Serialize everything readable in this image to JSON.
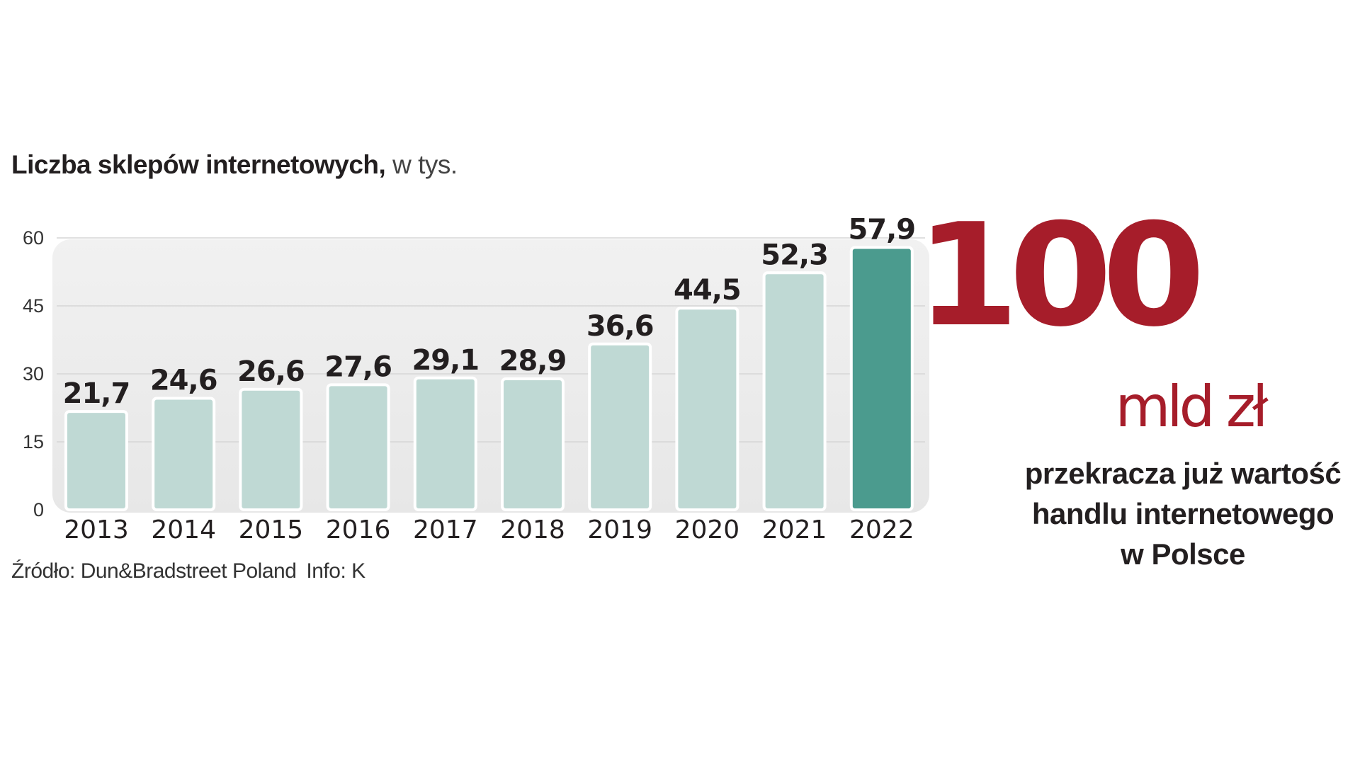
{
  "chart_data": {
    "type": "bar",
    "title_bold": "Liczba sklepów internetowych,",
    "title_light": " w tys.",
    "categories": [
      "2013",
      "2014",
      "2015",
      "2016",
      "2017",
      "2018",
      "2019",
      "2020",
      "2021",
      "2022"
    ],
    "values": [
      21.7,
      24.6,
      26.6,
      27.6,
      29.1,
      28.9,
      36.6,
      44.5,
      52.3,
      57.9
    ],
    "value_labels": [
      "21,7",
      "24,6",
      "26,6",
      "27,6",
      "29,1",
      "28,9",
      "36,6",
      "44,5",
      "52,3",
      "57,9"
    ],
    "yticks": [
      0,
      15,
      30,
      45,
      60
    ],
    "ylim": [
      0,
      60
    ],
    "xlabel": "",
    "ylabel": "",
    "grid": true,
    "highlight_index": 9
  },
  "colors": {
    "bar": "#bfd9d4",
    "bar_highlight": "#4b9b8e",
    "accent": "#a61d2a"
  },
  "source": {
    "text": "Źródło: Dun&Bradstreet Poland",
    "info": "Info: K"
  },
  "headline": {
    "number": "100",
    "unit": "mld zł",
    "description": [
      "przekracza już wartość",
      "handlu internetowego",
      "w Polsce"
    ]
  }
}
